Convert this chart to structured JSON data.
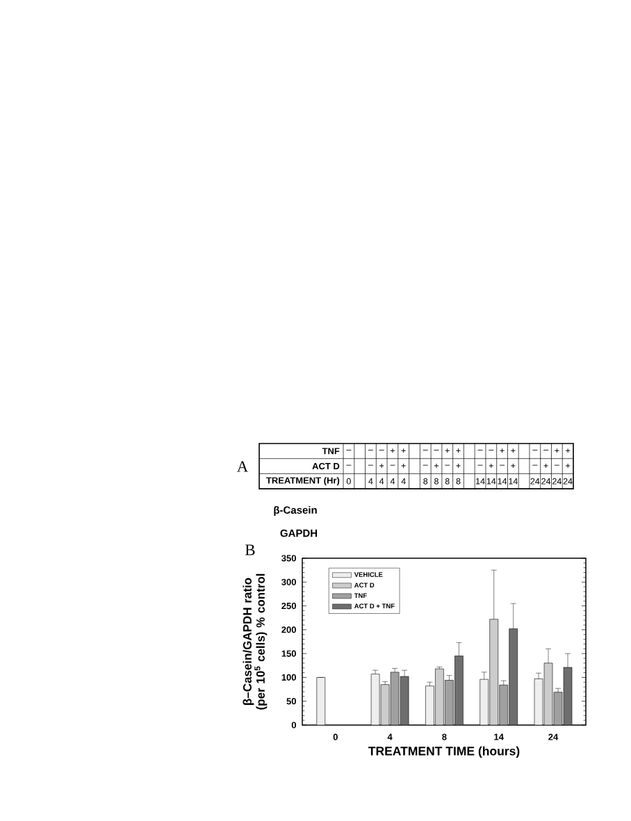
{
  "chart_data": [
    {
      "type": "other",
      "title": "A",
      "y_categories": [
        "TNF",
        "ACT D",
        "TREATMENT (Hr)"
      ],
      "cell_labels": [
        [
          "–",
          null,
          "–",
          "–",
          "+",
          "+",
          null,
          "–",
          "–",
          "+",
          "+",
          null,
          "–",
          "–",
          "+",
          "+",
          null,
          "–",
          "–",
          "+",
          "+"
        ],
        [
          "–",
          null,
          "–",
          "+",
          "–",
          "+",
          null,
          "–",
          "+",
          "–",
          "+",
          null,
          "–",
          "+",
          "–",
          "+",
          null,
          "–",
          "+",
          "–",
          "+"
        ],
        [
          "0",
          null,
          "4",
          "4",
          "4",
          "4",
          null,
          "8",
          "8",
          "8",
          "8",
          null,
          "14",
          "14",
          "14",
          "14",
          null,
          "24",
          "24",
          "24",
          "24"
        ]
      ],
      "annotations": [
        "β-Casein",
        "GAPDH"
      ]
    },
    {
      "type": "bar",
      "title": "B",
      "categories": [
        "0",
        "4",
        "8",
        "14",
        "24"
      ],
      "xlabel": "TREATMENT TIME (hours)",
      "ylabel": "β–Casein/GAPDH ratio (per 10$^{5}$ cells) % control",
      "ylim": [
        0,
        350
      ],
      "yticks": [
        0,
        {
          "value": 10,
          "label": null
        },
        {
          "value": 20,
          "label": null
        },
        {
          "value": 30,
          "label": null
        },
        {
          "value": 40,
          "label": null
        },
        50,
        {
          "value": 60,
          "label": null
        },
        {
          "value": 70,
          "label": null
        },
        {
          "value": 80,
          "label": null
        },
        {
          "value": 90,
          "label": null
        },
        100,
        {
          "value": 110,
          "label": null
        },
        {
          "value": 120,
          "label": null
        },
        {
          "value": 130,
          "label": null
        },
        {
          "value": 140,
          "label": null
        },
        150,
        {
          "value": 160,
          "label": null
        },
        {
          "value": 170,
          "label": null
        },
        {
          "value": 180,
          "label": null
        },
        {
          "value": 190,
          "label": null
        },
        200,
        {
          "value": 210,
          "label": null
        },
        {
          "value": 220,
          "label": null
        },
        {
          "value": 230,
          "label": null
        },
        {
          "value": 240,
          "label": null
        },
        250,
        {
          "value": 260,
          "label": null
        },
        {
          "value": 270,
          "label": null
        },
        {
          "value": 280,
          "label": null
        },
        {
          "value": 290,
          "label": null
        },
        300,
        {
          "value": 310,
          "label": null
        },
        {
          "value": 320,
          "label": null
        },
        {
          "value": 330,
          "label": null
        },
        {
          "value": 340,
          "label": null
        },
        350
      ],
      "legend": "top left",
      "series": [
        {
          "name": "VEHICLE",
          "color": "#eeeeee",
          "values": [
            100,
            107,
            82,
            96,
            97
          ],
          "errors": [
            null,
            [
              107,
              115
            ],
            [
              82,
              90
            ],
            [
              96,
              111
            ],
            [
              97,
              109
            ]
          ]
        },
        {
          "name": "ACT D",
          "color": "#cccccc",
          "values": [
            null,
            85,
            118,
            222,
            130
          ],
          "errors": [
            null,
            [
              85,
              91
            ],
            [
              118,
              122
            ],
            [
              222,
              325
            ],
            [
              130,
              160
            ]
          ]
        },
        {
          "name": "TNF",
          "color": "#a0a0a0",
          "values": [
            null,
            111,
            94,
            84,
            69
          ],
          "errors": [
            null,
            [
              111,
              119
            ],
            [
              94,
              104
            ],
            [
              84,
              93
            ],
            [
              69,
              77
            ]
          ]
        },
        {
          "name": "ACT D + TNF",
          "color": "#6e6e6e",
          "values": [
            null,
            102,
            145,
            202,
            121
          ],
          "errors": [
            null,
            [
              102,
              115
            ],
            [
              145,
              173
            ],
            [
              202,
              255
            ],
            [
              121,
              150
            ]
          ]
        }
      ]
    }
  ]
}
